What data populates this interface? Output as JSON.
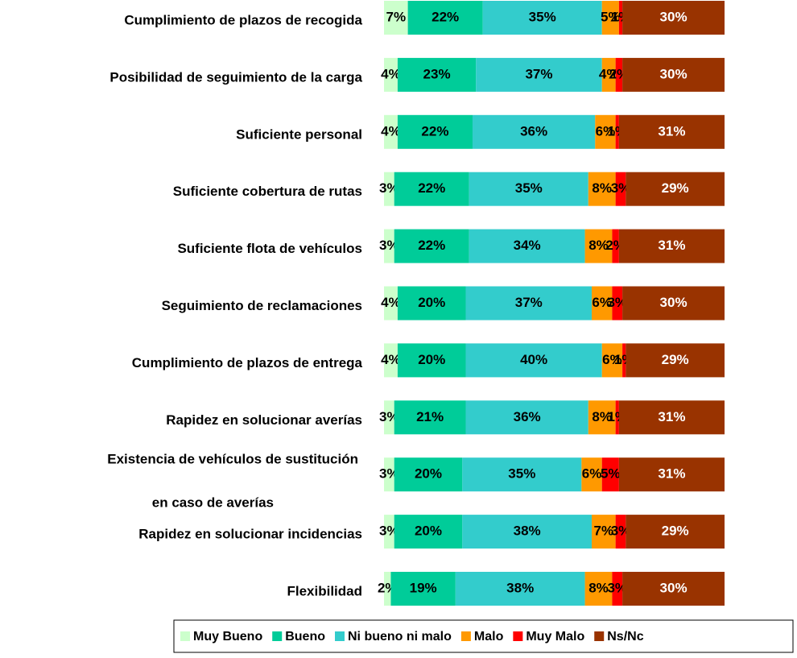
{
  "chart_data": {
    "type": "stacked-bar-horizontal",
    "categories": [
      "Cumplimiento de plazos de recogida",
      "Posibilidad de seguimiento de la carga",
      "Suficiente personal",
      "Suficiente cobertura de rutas",
      "Suficiente flota de vehículos",
      "Seguimiento de reclamaciones",
      "Cumplimiento de plazos de entrega",
      "Rapidez en solucionar averías",
      [
        "Existencia de vehículos de sustitución",
        "en caso de averías"
      ],
      "Rapidez en solucionar incidencias",
      "Flexibilidad"
    ],
    "xlim": [
      0,
      100
    ],
    "series": [
      {
        "name": "Muy Bueno",
        "color": "#ccffcc",
        "label_color": "#000000",
        "values": [
          7,
          4,
          4,
          3,
          3,
          4,
          4,
          3,
          3,
          3,
          2
        ],
        "value_labels": [
          "7%",
          "4%",
          "4%",
          "3%",
          "3%",
          "4%",
          "4%",
          "3%",
          "3%",
          "3%",
          "2%"
        ]
      },
      {
        "name": "Bueno",
        "color": "#00cc99",
        "label_color": "#000000",
        "values": [
          22,
          23,
          22,
          22,
          22,
          20,
          20,
          21,
          20,
          20,
          19
        ],
        "value_labels": [
          "22%",
          "23%",
          "22%",
          "22%",
          "22%",
          "20%",
          "20%",
          "21%",
          "20%",
          "20%",
          "19%"
        ]
      },
      {
        "name": "Ni bueno ni malo",
        "color": "#33cccc",
        "label_color": "#000000",
        "values": [
          35,
          37,
          36,
          35,
          34,
          37,
          40,
          36,
          35,
          38,
          38
        ],
        "value_labels": [
          "35%",
          "37%",
          "36%",
          "35%",
          "34%",
          "37%",
          "40%",
          "36%",
          "35%",
          "38%",
          "38%"
        ]
      },
      {
        "name": "Malo",
        "color": "#ff9900",
        "label_color": "#000000",
        "values": [
          5,
          4,
          6,
          8,
          8,
          6,
          6,
          8,
          6,
          7,
          8
        ],
        "value_labels": [
          "5%",
          "4%",
          "6%",
          "8%",
          "8%",
          "6%",
          "6%",
          "8%",
          "6%",
          "7%",
          "8%"
        ]
      },
      {
        "name": "Muy Malo",
        "color": "#ff0000",
        "label_color": "#000000",
        "values": [
          1,
          2,
          1,
          3,
          2,
          3,
          1,
          1,
          5,
          3,
          3
        ],
        "value_labels": [
          "1%",
          "2%",
          "1%",
          "3%",
          "2%",
          "3%",
          "1%",
          "1%",
          "5%",
          "3%",
          "3%"
        ]
      },
      {
        "name": "Ns/Nc",
        "color": "#993300",
        "label_color": "#ffffff",
        "values": [
          30,
          30,
          31,
          29,
          31,
          30,
          29,
          31,
          31,
          29,
          30
        ],
        "value_labels": [
          "30%",
          "30%",
          "31%",
          "29%",
          "31%",
          "30%",
          "29%",
          "31%",
          "31%",
          "29%",
          "30%"
        ]
      }
    ]
  }
}
